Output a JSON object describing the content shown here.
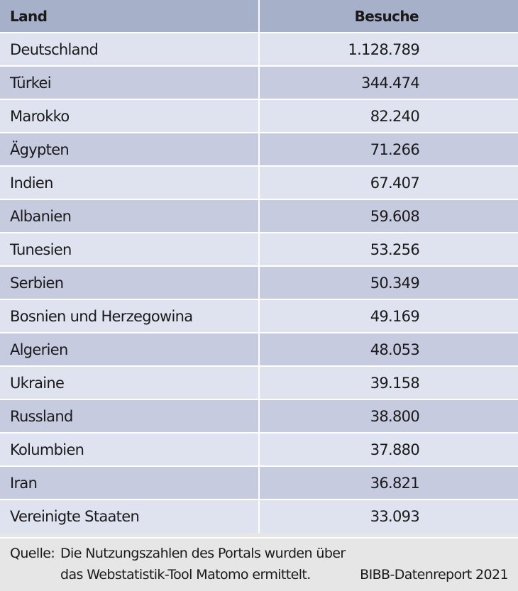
{
  "table": {
    "headers": {
      "country": "Land",
      "visits": "Besuche"
    },
    "rows": [
      {
        "country": "Deutschland",
        "visits": "1.128.789"
      },
      {
        "country": "Türkei",
        "visits": "344.474"
      },
      {
        "country": "Marokko",
        "visits": "82.240"
      },
      {
        "country": "Ägypten",
        "visits": "71.266"
      },
      {
        "country": "Indien",
        "visits": "67.407"
      },
      {
        "country": "Albanien",
        "visits": "59.608"
      },
      {
        "country": "Tunesien",
        "visits": "53.256"
      },
      {
        "country": "Serbien",
        "visits": "50.349"
      },
      {
        "country": "Bosnien und Herzegowina",
        "visits": "49.169"
      },
      {
        "country": "Algerien",
        "visits": "48.053"
      },
      {
        "country": "Ukraine",
        "visits": "39.158"
      },
      {
        "country": "Russland",
        "visits": "38.800"
      },
      {
        "country": "Kolumbien",
        "visits": "37.880"
      },
      {
        "country": "Iran",
        "visits": "36.821"
      },
      {
        "country": "Vereinigte Staaten",
        "visits": "33.093"
      }
    ]
  },
  "footer": {
    "note_label": "Quelle:",
    "note_line1": "Die Nutzungszahlen des Portals wurden über",
    "note_line2": "das Webstatistik-Tool Matomo ermittelt.",
    "source": "BIBB-Datenreport 2021"
  },
  "colors": {
    "header_bg": "#a7b0c9",
    "row_light": "#dfe3ef",
    "row_dark": "#c6cbdf",
    "footer_bg": "#e6e6e6"
  }
}
